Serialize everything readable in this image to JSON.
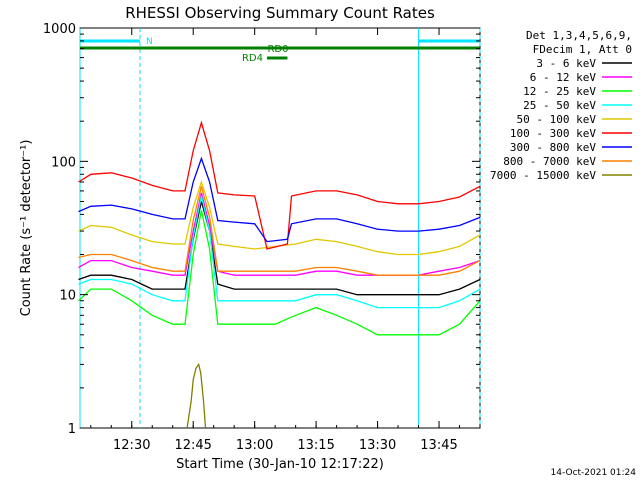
{
  "chart_data": {
    "type": "line",
    "title": "RHESSI Observing Summary Count Rates",
    "xlabel": "Start Time (30-Jan-10 12:17:22)",
    "ylabel": "Count Rate (s⁻¹ detector⁻¹)",
    "y_scale": "log",
    "ylim": [
      1,
      1000
    ],
    "xlim": [
      "12:17:22",
      "13:55:00"
    ],
    "x_ticks": [
      "12:30",
      "12:45",
      "13:00",
      "13:15",
      "13:30",
      "13:45"
    ],
    "y_ticks": [
      "1",
      "10",
      "100",
      "1000"
    ],
    "grid": false,
    "legend_position": "right",
    "legend_header": [
      "Det 1,3,4,5,6,9,",
      "FDecim 1, Att 0"
    ],
    "footer_date": "14-Oct-2021 01:24",
    "annotations": {
      "night_label": "N",
      "night_intervals": [
        [
          "12:17:22",
          "12:32:00"
        ],
        [
          "13:40:00",
          "13:55:00"
        ]
      ],
      "rd0_label": "RD0",
      "rd0_interval": [
        "12:17:22",
        "13:55:00"
      ],
      "rd4_label": "RD4",
      "rd4_interval": [
        "13:03:00",
        "13:08:00"
      ]
    },
    "series": [
      {
        "name": "3 - 6 keV",
        "color": "#000000",
        "points": [
          [
            "12:17",
            "13"
          ],
          [
            "12:20",
            "14"
          ],
          [
            "12:25",
            "14"
          ],
          [
            "12:30",
            "13"
          ],
          [
            "12:35",
            "11"
          ],
          [
            "12:40",
            "11"
          ],
          [
            "12:43",
            "11"
          ],
          [
            "12:45",
            "26"
          ],
          [
            "12:47",
            "50"
          ],
          [
            "12:49",
            "30"
          ],
          [
            "12:51",
            "12"
          ],
          [
            "12:55",
            "11"
          ],
          [
            "13:00",
            "11"
          ],
          [
            "13:05",
            "11"
          ],
          [
            "13:10",
            "11"
          ],
          [
            "13:15",
            "11"
          ],
          [
            "13:20",
            "11"
          ],
          [
            "13:25",
            "10"
          ],
          [
            "13:30",
            "10"
          ],
          [
            "13:35",
            "10"
          ],
          [
            "13:40",
            "10"
          ],
          [
            "13:45",
            "10"
          ],
          [
            "13:50",
            "11"
          ],
          [
            "13:55",
            "13"
          ]
        ]
      },
      {
        "name": "6 - 12 keV",
        "color": "#ff00ff",
        "points": [
          [
            "12:17",
            "16"
          ],
          [
            "12:20",
            "18"
          ],
          [
            "12:25",
            "18"
          ],
          [
            "12:30",
            "16"
          ],
          [
            "12:35",
            "15"
          ],
          [
            "12:40",
            "14"
          ],
          [
            "12:43",
            "14"
          ],
          [
            "12:45",
            "30"
          ],
          [
            "12:47",
            "58"
          ],
          [
            "12:49",
            "33"
          ],
          [
            "12:51",
            "15"
          ],
          [
            "12:55",
            "14"
          ],
          [
            "13:00",
            "14"
          ],
          [
            "13:05",
            "14"
          ],
          [
            "13:10",
            "14"
          ],
          [
            "13:15",
            "15"
          ],
          [
            "13:20",
            "15"
          ],
          [
            "13:25",
            "14"
          ],
          [
            "13:30",
            "14"
          ],
          [
            "13:35",
            "14"
          ],
          [
            "13:40",
            "14"
          ],
          [
            "13:45",
            "15"
          ],
          [
            "13:50",
            "16"
          ],
          [
            "13:55",
            "18"
          ]
        ]
      },
      {
        "name": "12 - 25 keV",
        "color": "#00ff00",
        "points": [
          [
            "12:17",
            "9"
          ],
          [
            "12:20",
            "11"
          ],
          [
            "12:25",
            "11"
          ],
          [
            "12:30",
            "9"
          ],
          [
            "12:35",
            "7"
          ],
          [
            "12:40",
            "6"
          ],
          [
            "12:43",
            "6"
          ],
          [
            "12:45",
            "20"
          ],
          [
            "12:47",
            "43"
          ],
          [
            "12:49",
            "22"
          ],
          [
            "12:51",
            "6"
          ],
          [
            "12:55",
            "6"
          ],
          [
            "13:00",
            "6"
          ],
          [
            "13:05",
            "6"
          ],
          [
            "13:10",
            "7"
          ],
          [
            "13:15",
            "8"
          ],
          [
            "13:20",
            "7"
          ],
          [
            "13:25",
            "6"
          ],
          [
            "13:30",
            "5"
          ],
          [
            "13:35",
            "5"
          ],
          [
            "13:40",
            "5"
          ],
          [
            "13:45",
            "5"
          ],
          [
            "13:50",
            "6"
          ],
          [
            "13:55",
            "9"
          ]
        ]
      },
      {
        "name": "25 - 50 keV",
        "color": "#00ffff",
        "points": [
          [
            "12:17",
            "12"
          ],
          [
            "12:20",
            "13"
          ],
          [
            "12:25",
            "13"
          ],
          [
            "12:30",
            "12"
          ],
          [
            "12:35",
            "10"
          ],
          [
            "12:40",
            "9"
          ],
          [
            "12:43",
            "9"
          ],
          [
            "12:45",
            "27"
          ],
          [
            "12:47",
            "55"
          ],
          [
            "12:49",
            "30"
          ],
          [
            "12:51",
            "9"
          ],
          [
            "12:55",
            "9"
          ],
          [
            "13:00",
            "9"
          ],
          [
            "13:05",
            "9"
          ],
          [
            "13:10",
            "9"
          ],
          [
            "13:15",
            "10"
          ],
          [
            "13:20",
            "10"
          ],
          [
            "13:25",
            "9"
          ],
          [
            "13:30",
            "8"
          ],
          [
            "13:35",
            "8"
          ],
          [
            "13:40",
            "8"
          ],
          [
            "13:45",
            "8"
          ],
          [
            "13:50",
            "9"
          ],
          [
            "13:55",
            "11"
          ]
        ]
      },
      {
        "name": "50 - 100 keV",
        "color": "#e0c800",
        "points": [
          [
            "12:17",
            "30"
          ],
          [
            "12:20",
            "33"
          ],
          [
            "12:25",
            "32"
          ],
          [
            "12:30",
            "28"
          ],
          [
            "12:35",
            "25"
          ],
          [
            "12:40",
            "24"
          ],
          [
            "12:43",
            "24"
          ],
          [
            "12:45",
            "45"
          ],
          [
            "12:47",
            "70"
          ],
          [
            "12:49",
            "45"
          ],
          [
            "12:51",
            "24"
          ],
          [
            "12:55",
            "23"
          ],
          [
            "13:00",
            "22"
          ],
          [
            "13:05",
            "23"
          ],
          [
            "13:10",
            "24"
          ],
          [
            "13:15",
            "26"
          ],
          [
            "13:20",
            "25"
          ],
          [
            "13:25",
            "23"
          ],
          [
            "13:30",
            "21"
          ],
          [
            "13:35",
            "20"
          ],
          [
            "13:40",
            "20"
          ],
          [
            "13:45",
            "21"
          ],
          [
            "13:50",
            "23"
          ],
          [
            "13:55",
            "28"
          ]
        ]
      },
      {
        "name": "100 - 300 keV",
        "color": "#ff0000",
        "points": [
          [
            "12:17",
            "70"
          ],
          [
            "12:20",
            "80"
          ],
          [
            "12:25",
            "82"
          ],
          [
            "12:30",
            "75"
          ],
          [
            "12:35",
            "66"
          ],
          [
            "12:40",
            "60"
          ],
          [
            "12:43",
            "60"
          ],
          [
            "12:45",
            "120"
          ],
          [
            "12:47",
            "195"
          ],
          [
            "12:49",
            "120"
          ],
          [
            "12:51",
            "58"
          ],
          [
            "12:55",
            "56"
          ],
          [
            "13:00",
            "55"
          ],
          [
            "13:03",
            "22"
          ],
          [
            "13:08",
            "24"
          ],
          [
            "13:09",
            "55"
          ],
          [
            "13:15",
            "60"
          ],
          [
            "13:20",
            "60"
          ],
          [
            "13:25",
            "56"
          ],
          [
            "13:30",
            "50"
          ],
          [
            "13:35",
            "48"
          ],
          [
            "13:40",
            "48"
          ],
          [
            "13:45",
            "50"
          ],
          [
            "13:50",
            "54"
          ],
          [
            "13:55",
            "65"
          ]
        ]
      },
      {
        "name": "300 - 800 keV",
        "color": "#0000ff",
        "points": [
          [
            "12:17",
            "42"
          ],
          [
            "12:20",
            "46"
          ],
          [
            "12:25",
            "47"
          ],
          [
            "12:30",
            "44"
          ],
          [
            "12:35",
            "40"
          ],
          [
            "12:40",
            "37"
          ],
          [
            "12:43",
            "37"
          ],
          [
            "12:45",
            "70"
          ],
          [
            "12:47",
            "105"
          ],
          [
            "12:49",
            "70"
          ],
          [
            "12:51",
            "36"
          ],
          [
            "12:55",
            "35"
          ],
          [
            "13:00",
            "34"
          ],
          [
            "13:03",
            "25"
          ],
          [
            "13:08",
            "26"
          ],
          [
            "13:09",
            "34"
          ],
          [
            "13:15",
            "37"
          ],
          [
            "13:20",
            "37"
          ],
          [
            "13:25",
            "34"
          ],
          [
            "13:30",
            "31"
          ],
          [
            "13:35",
            "30"
          ],
          [
            "13:40",
            "30"
          ],
          [
            "13:45",
            "31"
          ],
          [
            "13:50",
            "33"
          ],
          [
            "13:55",
            "38"
          ]
        ]
      },
      {
        "name": "800 - 7000 keV",
        "color": "#ff8000",
        "points": [
          [
            "12:17",
            "19"
          ],
          [
            "12:20",
            "20"
          ],
          [
            "12:25",
            "20"
          ],
          [
            "12:30",
            "18"
          ],
          [
            "12:35",
            "16"
          ],
          [
            "12:40",
            "15"
          ],
          [
            "12:43",
            "15"
          ],
          [
            "12:45",
            "36"
          ],
          [
            "12:47",
            "65"
          ],
          [
            "12:49",
            "38"
          ],
          [
            "12:51",
            "15"
          ],
          [
            "12:55",
            "15"
          ],
          [
            "13:00",
            "15"
          ],
          [
            "13:05",
            "15"
          ],
          [
            "13:10",
            "15"
          ],
          [
            "13:15",
            "16"
          ],
          [
            "13:20",
            "16"
          ],
          [
            "13:25",
            "15"
          ],
          [
            "13:30",
            "14"
          ],
          [
            "13:35",
            "14"
          ],
          [
            "13:40",
            "14"
          ],
          [
            "13:45",
            "14"
          ],
          [
            "13:50",
            "15"
          ],
          [
            "13:55",
            "18"
          ]
        ]
      },
      {
        "name": "7000 - 15000 keV",
        "color": "#808000",
        "points": [
          [
            "12:43:30",
            "1"
          ],
          [
            "12:44:30",
            "1.6"
          ],
          [
            "12:45:00",
            "2.3"
          ],
          [
            "12:45:40",
            "2.8"
          ],
          [
            "12:46:20",
            "3"
          ],
          [
            "12:46:50",
            "2.6"
          ],
          [
            "12:47:30",
            "1.6"
          ],
          [
            "12:48:00",
            "1"
          ]
        ]
      }
    ]
  }
}
